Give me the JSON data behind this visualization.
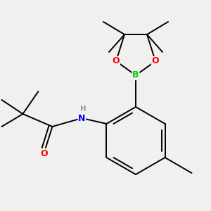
{
  "bg_color": "#f0f0f0",
  "bond_color": "#000000",
  "atom_colors": {
    "B": "#00cc00",
    "O": "#ff0000",
    "N": "#0000ff",
    "H": "#808080",
    "C": "#000000"
  },
  "figsize": [
    3.0,
    3.0
  ],
  "dpi": 100
}
